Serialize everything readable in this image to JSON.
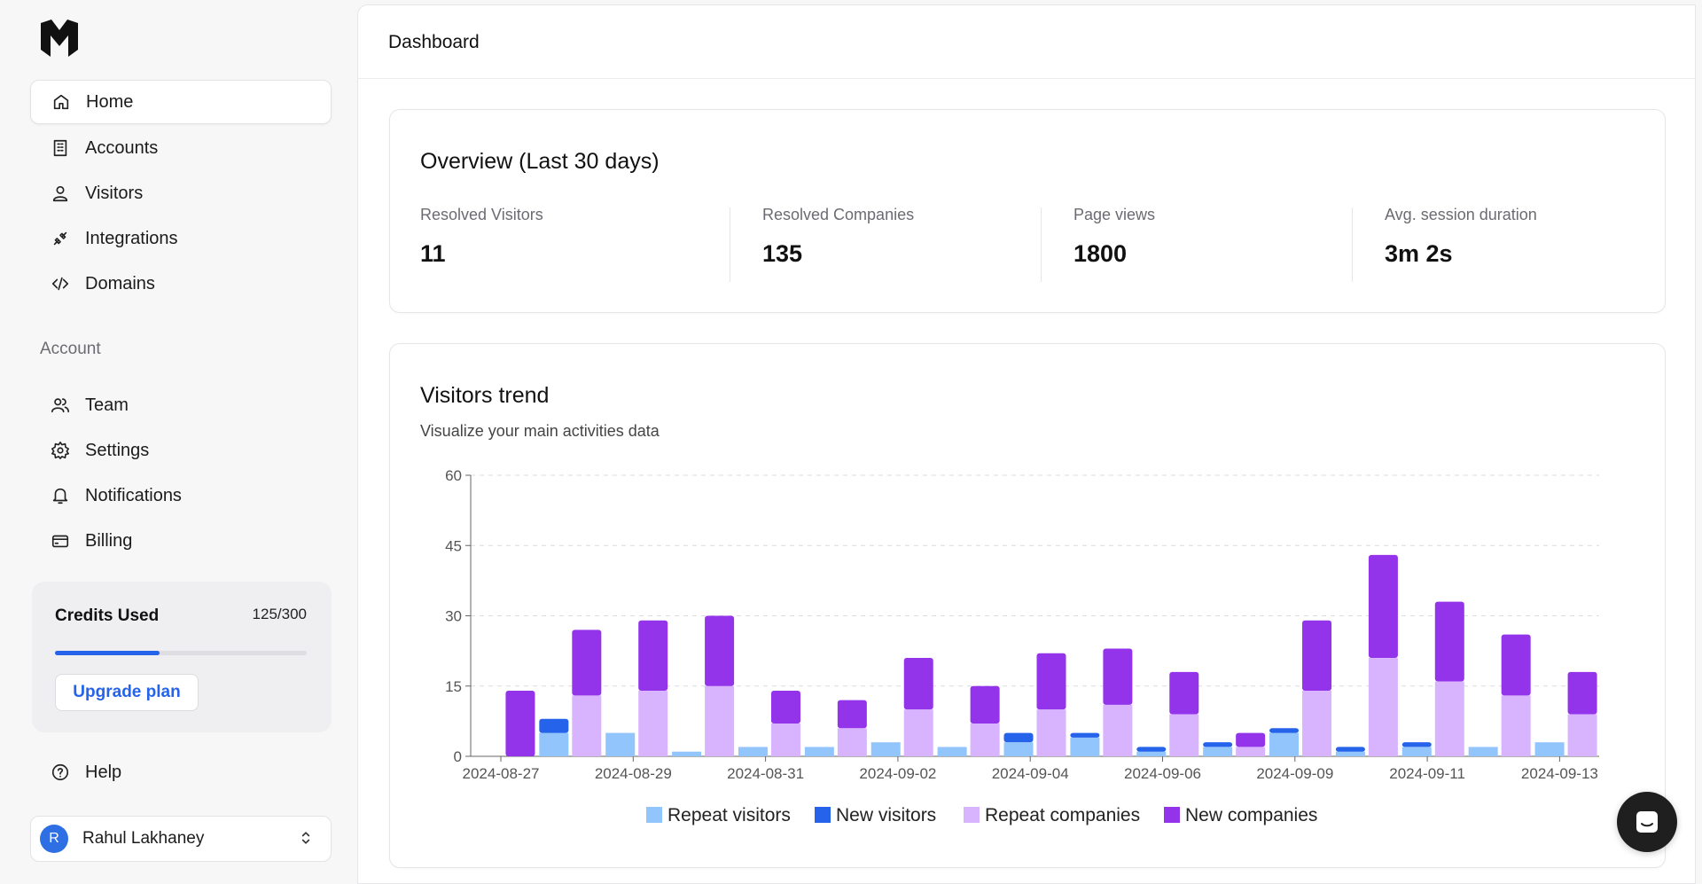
{
  "sidebar": {
    "nav": [
      {
        "label": "Home",
        "icon": "home-icon",
        "active": true
      },
      {
        "label": "Accounts",
        "icon": "building-icon"
      },
      {
        "label": "Visitors",
        "icon": "user-icon"
      },
      {
        "label": "Integrations",
        "icon": "plug-icon"
      },
      {
        "label": "Domains",
        "icon": "code-icon"
      }
    ],
    "account_label": "Account",
    "account_nav": [
      {
        "label": "Team",
        "icon": "users-icon"
      },
      {
        "label": "Settings",
        "icon": "gear-icon"
      },
      {
        "label": "Notifications",
        "icon": "bell-icon"
      },
      {
        "label": "Billing",
        "icon": "credit-card-icon"
      }
    ],
    "credits": {
      "title": "Credits Used",
      "count": "125/300",
      "used": 125,
      "total": 300,
      "upgrade_label": "Upgrade plan"
    },
    "help_label": "Help",
    "user": {
      "initial": "R",
      "name": "Rahul Lakhaney"
    }
  },
  "header": {
    "title": "Dashboard"
  },
  "overview": {
    "title": "Overview (Last 30 days)",
    "stats": [
      {
        "label": "Resolved Visitors",
        "value": "11"
      },
      {
        "label": "Resolved Companies",
        "value": "135"
      },
      {
        "label": "Page views",
        "value": "1800"
      },
      {
        "label": "Avg. session duration",
        "value": "3m 2s"
      }
    ]
  },
  "trend": {
    "title": "Visitors trend",
    "subtitle": "Visualize your main activities data"
  },
  "colors": {
    "repeat_visitors": "#93c5fd",
    "new_visitors": "#2563eb",
    "repeat_companies": "#d8b4fe",
    "new_companies": "#9333ea",
    "accent": "#2563eb"
  },
  "chart_data": {
    "type": "bar",
    "stacked": true,
    "ylim": [
      0,
      60
    ],
    "yticks": [
      0,
      15,
      30,
      45,
      60
    ],
    "grid": true,
    "legend": "bottom",
    "xticks": [
      "2024-08-27",
      "2024-08-29",
      "2024-08-31",
      "2024-09-02",
      "2024-09-04",
      "2024-09-06",
      "2024-09-09",
      "2024-09-11",
      "2024-09-13"
    ],
    "groups": [
      {
        "visitors": [
          0,
          0
        ],
        "companies": [
          0,
          14
        ]
      },
      {
        "visitors": [
          5,
          3
        ],
        "companies": [
          13,
          14
        ]
      },
      {
        "visitors": [
          5,
          0
        ],
        "companies": [
          14,
          15
        ]
      },
      {
        "visitors": [
          1,
          0
        ],
        "companies": [
          15,
          15
        ]
      },
      {
        "visitors": [
          2,
          0
        ],
        "companies": [
          7,
          7
        ]
      },
      {
        "visitors": [
          2,
          0
        ],
        "companies": [
          6,
          6
        ]
      },
      {
        "visitors": [
          3,
          0
        ],
        "companies": [
          10,
          11
        ]
      },
      {
        "visitors": [
          2,
          0
        ],
        "companies": [
          7,
          8
        ]
      },
      {
        "visitors": [
          3,
          2
        ],
        "companies": [
          10,
          12
        ]
      },
      {
        "visitors": [
          4,
          1
        ],
        "companies": [
          11,
          12
        ]
      },
      {
        "visitors": [
          1,
          1
        ],
        "companies": [
          9,
          9
        ]
      },
      {
        "visitors": [
          2,
          1
        ],
        "companies": [
          2,
          3
        ]
      },
      {
        "visitors": [
          5,
          1
        ],
        "companies": [
          14,
          15
        ]
      },
      {
        "visitors": [
          1,
          1
        ],
        "companies": [
          21,
          22
        ]
      },
      {
        "visitors": [
          2,
          1
        ],
        "companies": [
          16,
          17
        ]
      },
      {
        "visitors": [
          2,
          0
        ],
        "companies": [
          13,
          13
        ]
      },
      {
        "visitors": [
          3,
          0
        ],
        "companies": [
          9,
          9
        ]
      }
    ],
    "series": [
      {
        "name": "Repeat visitors"
      },
      {
        "name": "New visitors"
      },
      {
        "name": "Repeat companies"
      },
      {
        "name": "New companies"
      }
    ]
  }
}
